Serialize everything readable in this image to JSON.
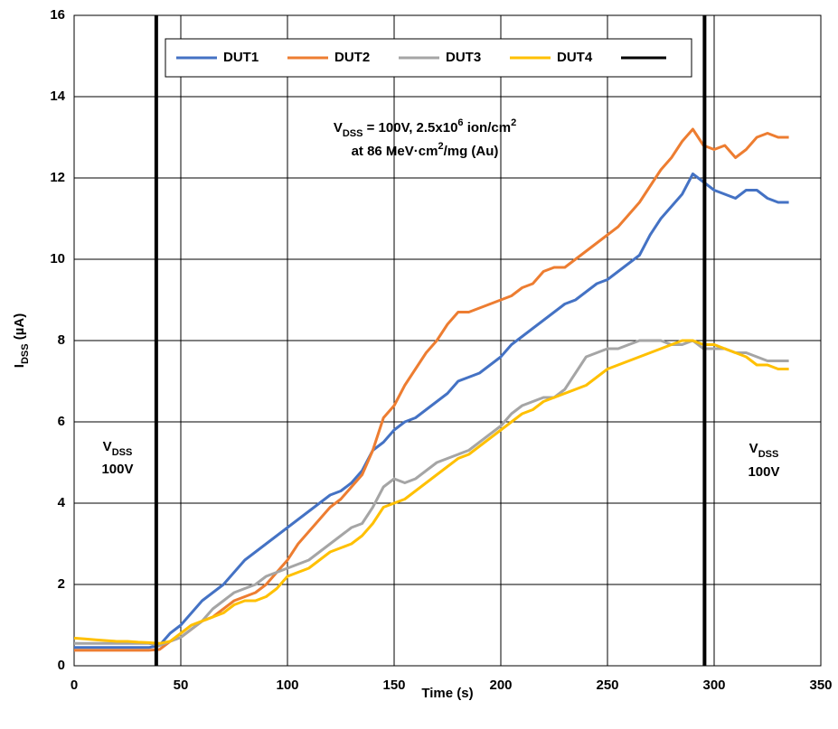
{
  "chart_data": {
    "type": "line",
    "x_label": "Time (s)",
    "y_label": [
      {
        "text": "I"
      },
      {
        "text": "DSS",
        "shift": "sub"
      },
      {
        "text": " (µA)"
      }
    ],
    "x": [
      0,
      5,
      10,
      15,
      20,
      25,
      30,
      35,
      40,
      45,
      50,
      55,
      60,
      65,
      70,
      75,
      80,
      85,
      90,
      95,
      100,
      105,
      110,
      115,
      120,
      125,
      130,
      135,
      140,
      145,
      150,
      155,
      160,
      165,
      170,
      175,
      180,
      185,
      190,
      195,
      200,
      205,
      210,
      215,
      220,
      225,
      230,
      235,
      240,
      245,
      250,
      255,
      260,
      265,
      270,
      275,
      280,
      285,
      290,
      295,
      300,
      305,
      310,
      315,
      320,
      325,
      330,
      335
    ],
    "series": [
      {
        "name": "DUT1",
        "color": "#4472c4",
        "values": [
          0.45,
          0.45,
          0.45,
          0.45,
          0.45,
          0.45,
          0.45,
          0.45,
          0.5,
          0.8,
          1.0,
          1.3,
          1.6,
          1.8,
          2.0,
          2.3,
          2.6,
          2.8,
          3.0,
          3.2,
          3.4,
          3.6,
          3.8,
          4.0,
          4.2,
          4.3,
          4.5,
          4.8,
          5.3,
          5.5,
          5.8,
          6.0,
          6.1,
          6.3,
          6.5,
          6.7,
          7.0,
          7.1,
          7.2,
          7.4,
          7.6,
          7.9,
          8.1,
          8.3,
          8.5,
          8.7,
          8.9,
          9.0,
          9.2,
          9.4,
          9.5,
          9.7,
          9.9,
          10.1,
          10.6,
          11.0,
          11.3,
          11.6,
          12.1,
          11.9,
          11.7,
          11.6,
          11.5,
          11.7,
          11.7,
          11.5,
          11.4,
          11.4
        ]
      },
      {
        "name": "DUT2",
        "color": "#ed7d31",
        "values": [
          0.38,
          0.38,
          0.38,
          0.38,
          0.38,
          0.38,
          0.38,
          0.38,
          0.4,
          0.6,
          0.7,
          0.9,
          1.1,
          1.2,
          1.4,
          1.6,
          1.7,
          1.8,
          2.0,
          2.3,
          2.6,
          3.0,
          3.3,
          3.6,
          3.9,
          4.1,
          4.4,
          4.7,
          5.3,
          6.1,
          6.4,
          6.9,
          7.3,
          7.7,
          8.0,
          8.4,
          8.7,
          8.7,
          8.8,
          8.9,
          9.0,
          9.1,
          9.3,
          9.4,
          9.7,
          9.8,
          9.8,
          10.0,
          10.2,
          10.4,
          10.6,
          10.8,
          11.1,
          11.4,
          11.8,
          12.2,
          12.5,
          12.9,
          13.2,
          12.8,
          12.7,
          12.8,
          12.5,
          12.7,
          13.0,
          13.1,
          13.0,
          13.0
        ]
      },
      {
        "name": "DUT3",
        "color": "#a5a5a5",
        "values": [
          0.55,
          0.55,
          0.55,
          0.55,
          0.55,
          0.55,
          0.55,
          0.55,
          0.5,
          0.6,
          0.7,
          0.9,
          1.1,
          1.4,
          1.6,
          1.8,
          1.9,
          2.0,
          2.2,
          2.3,
          2.4,
          2.5,
          2.6,
          2.8,
          3.0,
          3.2,
          3.4,
          3.5,
          3.9,
          4.4,
          4.6,
          4.5,
          4.6,
          4.8,
          5.0,
          5.1,
          5.2,
          5.3,
          5.5,
          5.7,
          5.9,
          6.2,
          6.4,
          6.5,
          6.6,
          6.6,
          6.8,
          7.2,
          7.6,
          7.7,
          7.8,
          7.8,
          7.9,
          8.0,
          8.0,
          8.0,
          7.9,
          7.9,
          8.0,
          7.8,
          7.8,
          7.8,
          7.7,
          7.7,
          7.6,
          7.5,
          7.5,
          7.5
        ]
      },
      {
        "name": "DUT4",
        "color": "#ffc000",
        "values": [
          0.68,
          0.66,
          0.64,
          0.62,
          0.6,
          0.6,
          0.58,
          0.57,
          0.55,
          0.6,
          0.8,
          1.0,
          1.1,
          1.2,
          1.3,
          1.5,
          1.6,
          1.6,
          1.7,
          1.9,
          2.2,
          2.3,
          2.4,
          2.6,
          2.8,
          2.9,
          3.0,
          3.2,
          3.5,
          3.9,
          4.0,
          4.1,
          4.3,
          4.5,
          4.7,
          4.9,
          5.1,
          5.2,
          5.4,
          5.6,
          5.8,
          6.0,
          6.2,
          6.3,
          6.5,
          6.6,
          6.7,
          6.8,
          6.9,
          7.1,
          7.3,
          7.4,
          7.5,
          7.6,
          7.7,
          7.8,
          7.9,
          8.0,
          8.0,
          7.9,
          7.9,
          7.8,
          7.7,
          7.6,
          7.4,
          7.4,
          7.3,
          7.3
        ]
      }
    ],
    "vlines": {
      "color": "#000000",
      "x": [
        38.5,
        295.5
      ]
    },
    "xlim": [
      0,
      350
    ],
    "xticks": [
      0,
      50,
      100,
      150,
      200,
      250,
      300,
      350
    ],
    "ylim": [
      0,
      16
    ],
    "yticks": [
      0,
      2,
      4,
      6,
      8,
      10,
      12,
      14,
      16
    ],
    "grid": true,
    "legend": "top",
    "annotations": [
      {
        "lines": [
          [
            {
              "text": "V"
            },
            {
              "text": "DSS",
              "shift": "sub"
            },
            {
              "text": " = 100V, 2.5x10"
            },
            {
              "text": "6",
              "shift": "super"
            },
            {
              "text": " ion/cm"
            },
            {
              "text": "2",
              "shift": "super"
            }
          ],
          [
            {
              "text": "at 86 MeV·cm"
            },
            {
              "text": "2",
              "shift": "super"
            },
            {
              "text": "/mg (Au)"
            }
          ]
        ]
      },
      {
        "lines": [
          [
            {
              "text": "V"
            },
            {
              "text": "DSS",
              "shift": "sub"
            }
          ],
          [
            {
              "text": "100V"
            }
          ]
        ]
      },
      {
        "lines": [
          [
            {
              "text": "V"
            },
            {
              "text": "DSS",
              "shift": "sub"
            }
          ],
          [
            {
              "text": "100V"
            }
          ]
        ]
      }
    ]
  }
}
